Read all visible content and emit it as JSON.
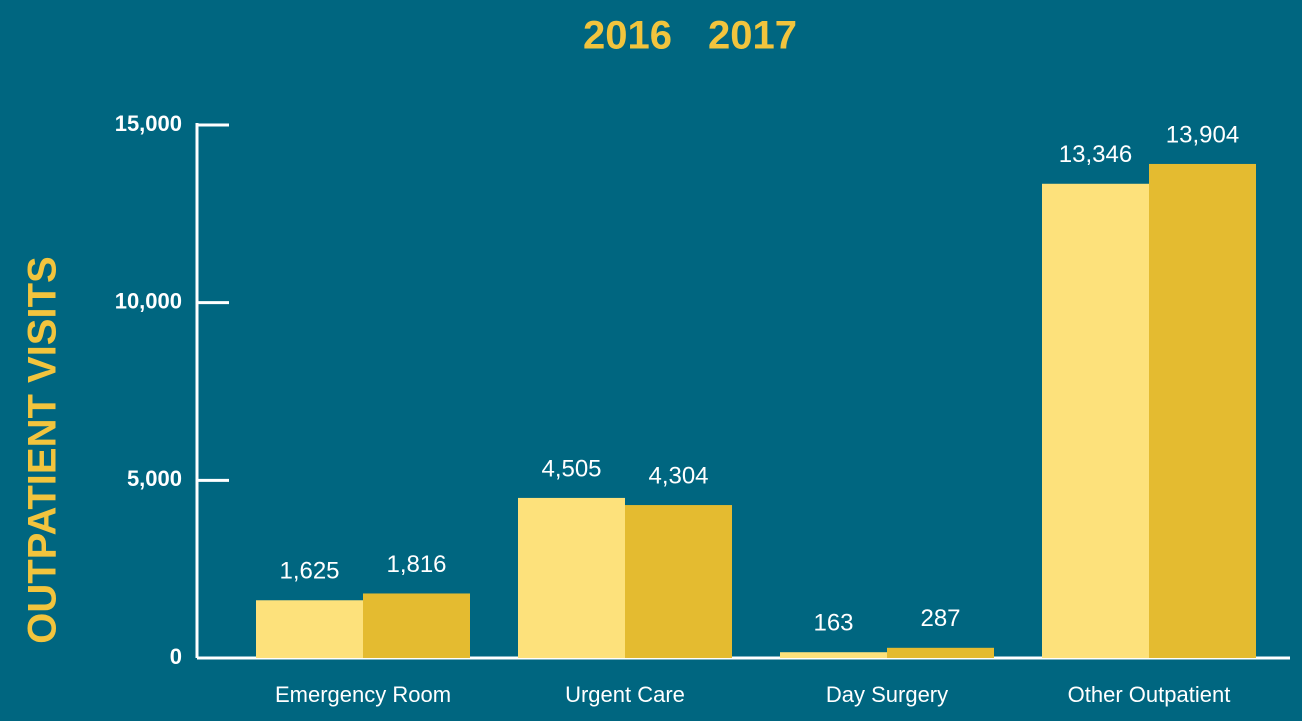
{
  "chart_data": {
    "type": "bar",
    "y_label": "OUTPATIENT VISITS",
    "categories": [
      "Emergency Room",
      "Urgent Care",
      "Day Surgery",
      "Other Outpatient"
    ],
    "series": [
      {
        "name": "2016",
        "color": "#fde17b",
        "values": [
          1625,
          4505,
          163,
          13346
        ],
        "value_labels": [
          "1,625",
          "4,505",
          "163",
          "13,346"
        ]
      },
      {
        "name": "2017",
        "color": "#e4bb30",
        "values": [
          1816,
          4304,
          287,
          13904
        ],
        "value_labels": [
          "1,816",
          "4,304",
          "287",
          "13,904"
        ]
      }
    ],
    "ylim": [
      0,
      15000
    ],
    "yticks": [
      0,
      {
        "value": 5000,
        "label": "5,000"
      },
      {
        "value": 10000,
        "label": "10,000"
      },
      {
        "value": 15000,
        "label": "15,000"
      }
    ],
    "legend": "top"
  }
}
